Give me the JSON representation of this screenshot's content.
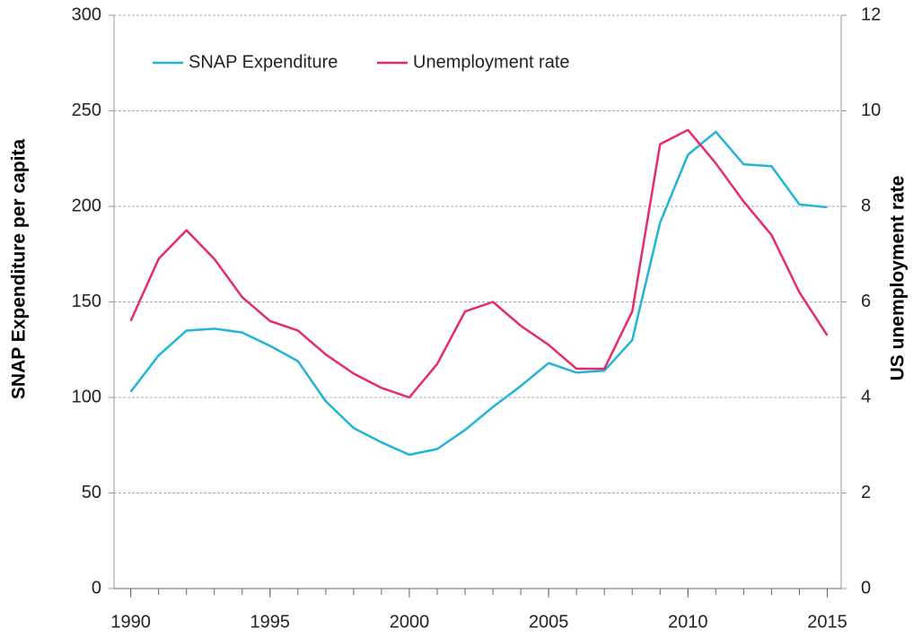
{
  "chart_data": {
    "type": "line",
    "x": [
      1990,
      1991,
      1992,
      1993,
      1994,
      1995,
      1996,
      1997,
      1998,
      1999,
      2000,
      2001,
      2002,
      2003,
      2004,
      2005,
      2006,
      2007,
      2008,
      2009,
      2010,
      2011,
      2012,
      2013,
      2014,
      2015
    ],
    "xlim": [
      1989.4,
      2015.5
    ],
    "xticks": [
      1990,
      1995,
      2000,
      2005,
      2010,
      2015
    ],
    "ylabel": "SNAP Expenditure per capita",
    "ylim": [
      0,
      300
    ],
    "yticks": [
      0,
      50,
      100,
      150,
      200,
      250,
      300
    ],
    "y2label": "US unemployment rate",
    "y2lim": [
      0,
      12
    ],
    "y2ticks": [
      0,
      2,
      4,
      6,
      8,
      10,
      12
    ],
    "grid": true,
    "legend": "top",
    "series": [
      {
        "name": "SNAP Expenditure",
        "color": "#1fb5d6",
        "values": [
          103,
          122,
          135,
          136,
          134,
          127,
          119,
          98,
          84,
          76.5,
          70,
          73,
          83,
          95,
          106,
          118,
          113,
          114,
          130,
          191.5,
          227,
          239,
          222,
          221,
          201,
          199.5
        ]
      },
      {
        "name": "Unemployment rate",
        "color": "#e8296b",
        "axis": "y2",
        "values": [
          5.6,
          6.9,
          7.5,
          6.9,
          6.1,
          5.6,
          5.4,
          4.9,
          4.5,
          4.2,
          4.0,
          4.7,
          5.8,
          6.0,
          5.5,
          5.1,
          4.6,
          4.6,
          5.8,
          9.3,
          9.6,
          8.9,
          8.1,
          7.4,
          6.2,
          5.3
        ]
      }
    ]
  }
}
